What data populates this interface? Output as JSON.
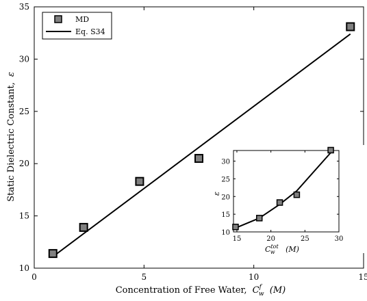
{
  "chart_data": [
    {
      "type": "scatter",
      "xlabel": "Concentration of Free Water,",
      "xlabel_math": "C",
      "xlabel_sup": "f",
      "xlabel_sub": "w",
      "xlabel_unit": "(M)",
      "ylabel": "Static Dielectric Constant,",
      "ylabel_math": "ε",
      "xlim": [
        0,
        15
      ],
      "ylim": [
        10,
        35
      ],
      "xticks": [
        "0",
        "5",
        "10",
        "15"
      ],
      "yticks": [
        "10",
        "15",
        "20",
        "25",
        "30",
        "35"
      ],
      "xtick_values": [
        0,
        5,
        10,
        15
      ],
      "ytick_values": [
        10,
        15,
        20,
        25,
        30,
        35
      ],
      "grid": false,
      "legend_position": "top-left",
      "series": [
        {
          "name": "MD",
          "kind": "markers",
          "marker": "square",
          "color": "#808080",
          "x": [
            0.85,
            2.25,
            4.8,
            7.5,
            14.4
          ],
          "y": [
            11.4,
            13.9,
            18.3,
            20.5,
            33.1
          ]
        },
        {
          "name": "Eq. S34",
          "kind": "line",
          "color": "#000000",
          "x": [
            0.85,
            14.4
          ],
          "y": [
            11.1,
            32.4
          ]
        }
      ]
    },
    {
      "type": "line",
      "role": "inset",
      "xlabel_math": "C",
      "xlabel_sup": "tot",
      "xlabel_sub": "w",
      "xlabel_unit": "(M)",
      "ylabel_math": "ε",
      "xlim": [
        14.5,
        30
      ],
      "ylim": [
        10,
        33
      ],
      "xticks": [
        "15",
        "20",
        "25",
        "30"
      ],
      "yticks": [
        "10",
        "15",
        "20",
        "25",
        "30"
      ],
      "xtick_values": [
        15,
        20,
        25,
        30
      ],
      "ytick_values": [
        10,
        15,
        20,
        25,
        30
      ],
      "grid": false,
      "series": [
        {
          "kind": "markers",
          "marker": "square",
          "color": "#808080",
          "x": [
            14.8,
            18.3,
            21.3,
            23.8,
            28.8
          ],
          "y": [
            11.4,
            13.9,
            18.3,
            20.5,
            33.1
          ]
        },
        {
          "kind": "line",
          "color": "#000000",
          "x": [
            14.8,
            18.3,
            21.3,
            23.8,
            28.8
          ],
          "y": [
            11.1,
            13.9,
            17.8,
            21.6,
            32.4
          ]
        }
      ]
    }
  ]
}
